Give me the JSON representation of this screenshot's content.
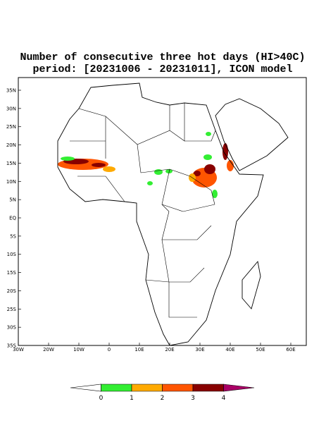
{
  "title": "Number of consecutive three hot days (HI>40C)",
  "subtitle": "period: [20231006 - 20231011], ICON model",
  "lat_labels": [
    "35N",
    "30N",
    "25N",
    "20N",
    "15N",
    "10N",
    "5N",
    "EQ",
    "5S",
    "10S",
    "15S",
    "20S",
    "25S",
    "30S",
    "35S"
  ],
  "lon_labels": [
    "30W",
    "20W",
    "10W",
    "0",
    "10E",
    "20E",
    "30E",
    "40E",
    "50E",
    "60E"
  ],
  "legend": {
    "ticks": [
      "0",
      "1",
      "2",
      "3",
      "4"
    ],
    "colors": [
      "#ffffff",
      "#33ee33",
      "#ffaa00",
      "#ff5500",
      "#880000",
      "#aa0066"
    ]
  }
}
